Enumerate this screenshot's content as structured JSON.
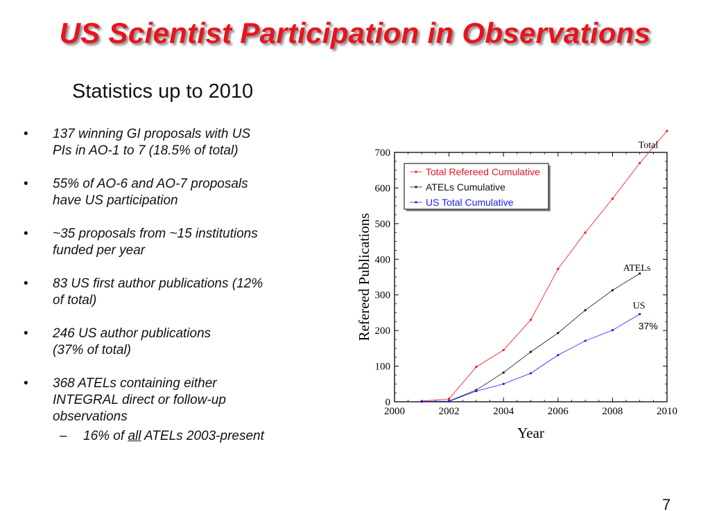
{
  "slide": {
    "title": "US Scientist Participation in Observations",
    "subtitle": "Statistics up to 2010",
    "page_number": "7"
  },
  "bullets": [
    {
      "marker": "•",
      "line1": "137 winning GI proposals with US",
      "line2": "PIs in AO-1 to 7 (18.5% of total)"
    },
    {
      "marker": "•",
      "line1": "55% of AO-6 and AO-7 proposals",
      "line2": "have US participation"
    },
    {
      "marker": "•",
      "line1": "~35 proposals from ~15 institutions",
      "line2": "funded per year"
    },
    {
      "marker": "•",
      "line1": "83 US first author publications (12%",
      "line2": "of total)"
    },
    {
      "marker": "•",
      "line1": "246 US author publications",
      "line2": "(37% of total)"
    },
    {
      "marker": "•",
      "line1": "368 ATELs containing either",
      "line2": "INTEGRAL direct or follow-up",
      "line3": "observations"
    }
  ],
  "sub_bullet": {
    "marker": "–",
    "prefix": "16% of ",
    "underlined": "all",
    "suffix": " ATELs 2003-present"
  },
  "chart_data": {
    "type": "line",
    "xlabel": "Year",
    "ylabel": "Refereed Publications",
    "xlim": [
      2000,
      2010
    ],
    "ylim": [
      0,
      700
    ],
    "x_ticks": [
      "2000",
      "2002",
      "2004",
      "2006",
      "2008",
      "2010"
    ],
    "y_ticks": [
      "0",
      "100",
      "200",
      "300",
      "400",
      "500",
      "600",
      "700"
    ],
    "legend_position": "top-left",
    "series": [
      {
        "name": "Total Refereed Cumulative",
        "color": "#e8141c",
        "label_color": "#e8141c",
        "end_label": "Total",
        "x": [
          2001,
          2002,
          2003,
          2004,
          2005,
          2006,
          2007,
          2008,
          2009,
          2010
        ],
        "y": [
          2,
          8,
          98,
          145,
          230,
          373,
          475,
          570,
          670,
          760
        ]
      },
      {
        "name": "ATELs Cumulative",
        "color": "#111111",
        "label_color": "#111111",
        "end_label": "ATELs",
        "x": [
          2001,
          2002,
          2003,
          2004,
          2005,
          2006,
          2007,
          2008,
          2009
        ],
        "y": [
          1,
          2,
          33,
          82,
          140,
          193,
          257,
          313,
          360
        ]
      },
      {
        "name": "US Total Cumulative",
        "color": "#1a1aff",
        "label_color": "#1a1aff",
        "end_label": "US",
        "x": [
          2001,
          2002,
          2003,
          2004,
          2005,
          2006,
          2007,
          2008,
          2009
        ],
        "y": [
          0,
          1,
          30,
          50,
          80,
          131,
          171,
          201,
          246
        ]
      }
    ],
    "annotation": "37%"
  }
}
